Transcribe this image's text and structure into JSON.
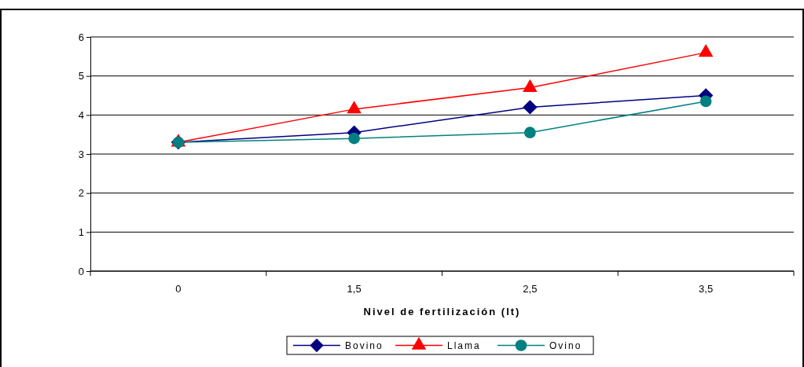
{
  "chart_data": {
    "type": "line",
    "xlabel": "Nivel de fertilización (lt)",
    "categories": [
      "0",
      "1,5",
      "2,5",
      "3,5"
    ],
    "series": [
      {
        "name": "Bovino",
        "color": "#000080",
        "marker": "diamond",
        "values": [
          3.3,
          3.55,
          4.2,
          4.5
        ]
      },
      {
        "name": "Llama",
        "color": "#ff0000",
        "marker": "triangle",
        "values": [
          3.3,
          4.15,
          4.7,
          5.6
        ]
      },
      {
        "name": "Ovino",
        "color": "#008080",
        "marker": "circle",
        "values": [
          3.3,
          3.4,
          3.55,
          4.35
        ]
      }
    ],
    "ylim": [
      0,
      6
    ],
    "yticks": [
      0,
      1,
      2,
      3,
      4,
      5,
      6
    ],
    "grid": "y",
    "legend": "bottom"
  }
}
